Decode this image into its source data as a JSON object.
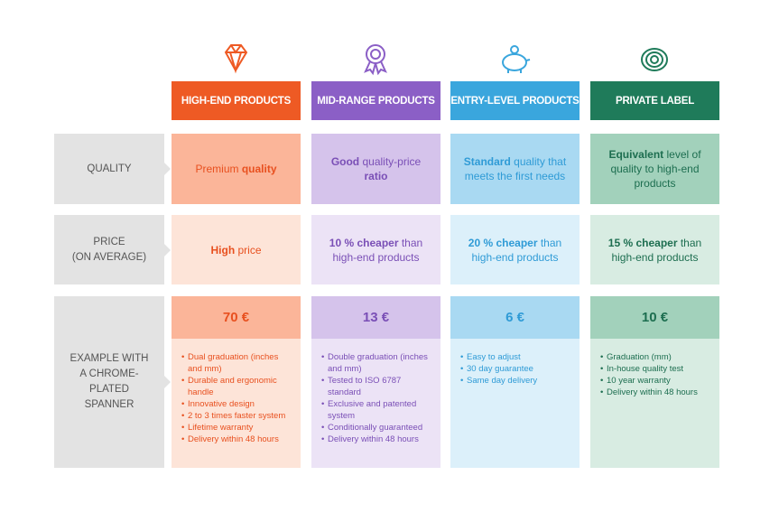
{
  "row_labels": [
    [
      "QUALITY"
    ],
    [
      "PRICE",
      "(ON AVERAGE)"
    ],
    [
      "EXAMPLE WITH",
      "A CHROME-",
      "PLATED",
      "SPANNER"
    ]
  ],
  "columns": [
    {
      "header": "HIGH-END PRODUCTS",
      "colors": {
        "main": "#ee5a24",
        "mid": "#fbb599",
        "light": "#fde4d8",
        "text": "#e8501f"
      },
      "quality": [
        {
          "text": "Premium",
          "bold": false
        },
        {
          "text": "quality",
          "bold": true
        }
      ],
      "price": [
        {
          "text": "High",
          "bold": true
        },
        {
          "text": "price",
          "bold": false
        }
      ],
      "example_price": "70 €",
      "features": [
        "Dual graduation (inches and mm)",
        "Durable and ergonomic handle",
        "Innovative design",
        "2 to 3 times faster system",
        "Lifetime warranty",
        "Delivery within 48 hours"
      ]
    },
    {
      "header": "MID-RANGE PRODUCTS",
      "colors": {
        "main": "#8b5fc6",
        "mid": "#d5c3eb",
        "light": "#ece3f6",
        "text": "#7a4fb6"
      },
      "quality": [
        {
          "text": "Good",
          "bold": true
        },
        {
          "text": "quality-price",
          "bold": false
        },
        {
          "text": "ratio",
          "bold": true
        }
      ],
      "price": [
        {
          "text": "10 % cheaper",
          "bold": true
        },
        {
          "text": "than high-end products",
          "bold": false
        }
      ],
      "example_price": "13 €",
      "features": [
        "Double graduation (inches and mm)",
        "Tested to ISO 6787 standard",
        "Exclusive and patented system",
        "Conditionally guaranteed",
        "Delivery within 48 hours"
      ]
    },
    {
      "header": "ENTRY-LEVEL PRODUCTS",
      "colors": {
        "main": "#3aa6dd",
        "mid": "#a9d9f2",
        "light": "#dcf0fa",
        "text": "#2f9bd6"
      },
      "quality": [
        {
          "text": "Standard",
          "bold": true
        },
        {
          "text": "quality that meets the first needs",
          "bold": false
        }
      ],
      "price": [
        {
          "text": "20 % cheaper",
          "bold": true
        },
        {
          "text": "than high-end products",
          "bold": false
        }
      ],
      "example_price": "6 €",
      "features": [
        "Easy to adjust",
        "30 day guarantee",
        "Same day delivery"
      ]
    },
    {
      "header": "PRIVATE LABEL",
      "colors": {
        "main": "#1f7b5a",
        "mid": "#a2d1bb",
        "light": "#d8ece2",
        "text": "#1d6e50"
      },
      "quality": [
        {
          "text": "Equivalent",
          "bold": true
        },
        {
          "text": "level of quality to high-end products",
          "bold": false
        }
      ],
      "price": [
        {
          "text": "15 % cheaper",
          "bold": true
        },
        {
          "text": "than high-end products",
          "bold": false
        }
      ],
      "example_price": "10 €",
      "features": [
        "Graduation (mm)",
        "In-house quality test",
        "10 year warranty",
        "Delivery within 48 hours"
      ]
    }
  ]
}
